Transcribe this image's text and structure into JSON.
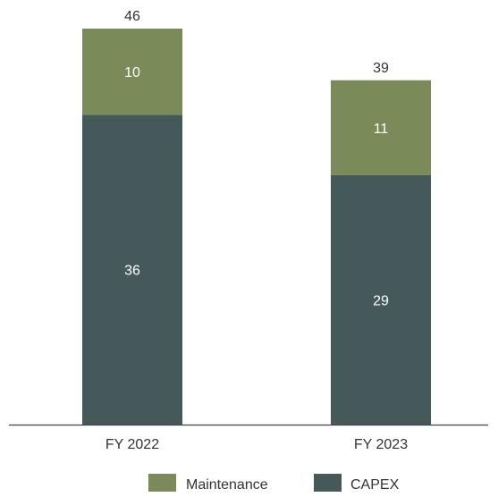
{
  "chart_data": {
    "type": "bar",
    "stacked": true,
    "categories": [
      "FY 2022",
      "FY 2023"
    ],
    "series": [
      {
        "name": "CAPEX",
        "values": [
          36,
          29
        ],
        "color": "#45595a"
      },
      {
        "name": "Maintenance",
        "values": [
          10,
          11
        ],
        "color": "#7a8a58"
      }
    ],
    "totals": [
      46,
      39
    ],
    "legend_order": [
      "Maintenance",
      "CAPEX"
    ],
    "legend_position": "bottom",
    "title": "",
    "xlabel": "",
    "ylabel": "",
    "ylim": [
      0,
      46
    ],
    "grid": false,
    "axis_line_color": "#444444"
  }
}
